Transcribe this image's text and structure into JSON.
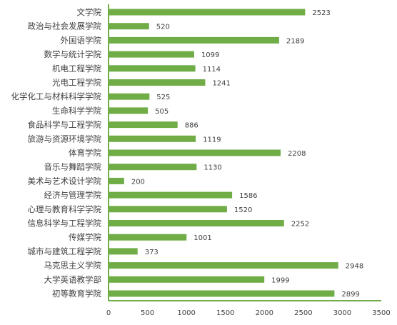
{
  "chart_data": {
    "type": "bar",
    "orientation": "horizontal",
    "categories": [
      "文学院",
      "政治与社会发展学院",
      "外国语学院",
      "数学与统计学院",
      "机电工程学院",
      "光电工程学院",
      "化学化工与材料科学学院",
      "生命科学学院",
      "食品科学与工程学院",
      "旅游与资源环境学院",
      "体育学院",
      "音乐与舞蹈学院",
      "美术与艺术设计学院",
      "经济与管理学院",
      "心理与教育科学学院",
      "信息科学与工程学院",
      "传媒学院",
      "城市与建筑工程学院",
      "马克思主义学院",
      "大学英语教学部",
      "初等教育学院"
    ],
    "values": [
      2523,
      520,
      2189,
      1099,
      1114,
      1241,
      525,
      505,
      886,
      1119,
      2208,
      1130,
      200,
      1586,
      1520,
      2252,
      1001,
      373,
      2948,
      1999,
      2899
    ],
    "xlim": [
      0,
      3500
    ],
    "xticks": [
      0,
      500,
      1000,
      1500,
      2000,
      2500,
      3000,
      3500
    ],
    "data_labels": true,
    "grid": false,
    "legend": "none",
    "bar_color": "#70ad47",
    "axis_color": "#70ad47"
  }
}
